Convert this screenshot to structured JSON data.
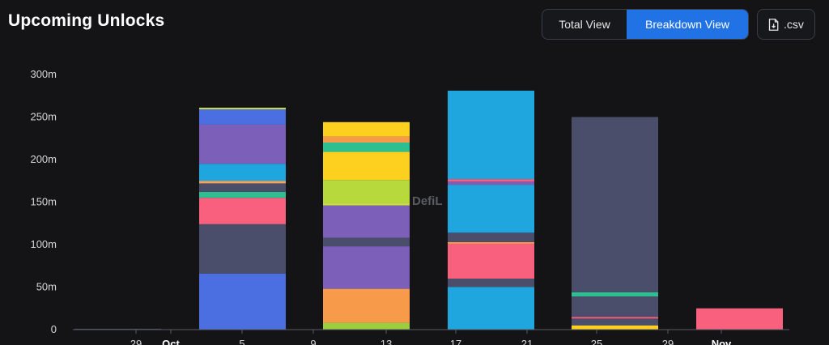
{
  "header": {
    "title": "Upcoming Unlocks",
    "total_view_label": "Total View",
    "breakdown_view_label": "Breakdown View",
    "csv_label": ".csv"
  },
  "watermark": "DefiL",
  "colors": {
    "background": "#141417",
    "active_toggle": "#2172e5",
    "axis_text": "#d8d8d8"
  },
  "chart_data": {
    "type": "bar",
    "stacked": true,
    "title": "Upcoming Unlocks",
    "xlabel": "",
    "ylabel": "",
    "ylim": [
      0,
      300
    ],
    "y_unit": "m",
    "y_ticks": [
      "0",
      "50m",
      "100m",
      "150m",
      "200m",
      "250m",
      "300m"
    ],
    "x_ticks": [
      "29",
      "Oct",
      "5",
      "9",
      "13",
      "17",
      "21",
      "25",
      "29",
      "Nov"
    ],
    "grid": false,
    "legend": "none",
    "categories": [
      "Sep 27 – Oct 1",
      "Oct 5",
      "Oct 13",
      "Oct 17–21",
      "Oct 25",
      "Nov 1"
    ],
    "stacks": [
      {
        "category": "Sep 27 – Oct 1",
        "segments": [
          {
            "value": 1,
            "color": "#4b4e6b"
          }
        ]
      },
      {
        "category": "Oct 5",
        "segments": [
          {
            "value": 66,
            "color": "#4b6fe0"
          },
          {
            "value": 58,
            "color": "#4b4e6b"
          },
          {
            "value": 31,
            "color": "#f9607e"
          },
          {
            "value": 7,
            "color": "#2ebf91"
          },
          {
            "value": 10,
            "color": "#4b4e6b"
          },
          {
            "value": 3,
            "color": "#f5a45b"
          },
          {
            "value": 20,
            "color": "#1fa6de"
          },
          {
            "value": 46,
            "color": "#7b5fb8"
          },
          {
            "value": 18,
            "color": "#4b6fe0"
          },
          {
            "value": 2,
            "color": "#c7da48"
          }
        ]
      },
      {
        "category": "Oct 13",
        "segments": [
          {
            "value": 8,
            "color": "#9ccf3f"
          },
          {
            "value": 40,
            "color": "#f79a4a"
          },
          {
            "value": 50,
            "color": "#7b5fb8"
          },
          {
            "value": 10,
            "color": "#4b4e6b"
          },
          {
            "value": 38,
            "color": "#7b5fb8"
          },
          {
            "value": 3,
            "color": "#c7da48"
          },
          {
            "value": 27,
            "color": "#b8d93c"
          },
          {
            "value": 33,
            "color": "#fdcf1f"
          },
          {
            "value": 11,
            "color": "#2ebf91"
          },
          {
            "value": 7,
            "color": "#f79a4a"
          },
          {
            "value": 17,
            "color": "#fdcf1f"
          }
        ]
      },
      {
        "category": "Oct 17–21",
        "segments": [
          {
            "value": 50,
            "color": "#1fa6de"
          },
          {
            "value": 10,
            "color": "#4b4e6b"
          },
          {
            "value": 41,
            "color": "#f9607e"
          },
          {
            "value": 2,
            "color": "#f79a4a"
          },
          {
            "value": 11,
            "color": "#4b4e6b"
          },
          {
            "value": 56,
            "color": "#1fa6de"
          },
          {
            "value": 4,
            "color": "#7b5fb8"
          },
          {
            "value": 3,
            "color": "#f9607e"
          },
          {
            "value": 104,
            "color": "#1fa6de"
          }
        ]
      },
      {
        "category": "Oct 25",
        "segments": [
          {
            "value": 5,
            "color": "#fdcf1f"
          },
          {
            "value": 8,
            "color": "#4b4e6b"
          },
          {
            "value": 2,
            "color": "#f9607e"
          },
          {
            "value": 24,
            "color": "#4b4e6b"
          },
          {
            "value": 5,
            "color": "#2ebf91"
          },
          {
            "value": 206,
            "color": "#4b4e6b"
          }
        ]
      },
      {
        "category": "Nov 1",
        "segments": [
          {
            "value": 25,
            "color": "#f9607e"
          }
        ]
      }
    ]
  }
}
